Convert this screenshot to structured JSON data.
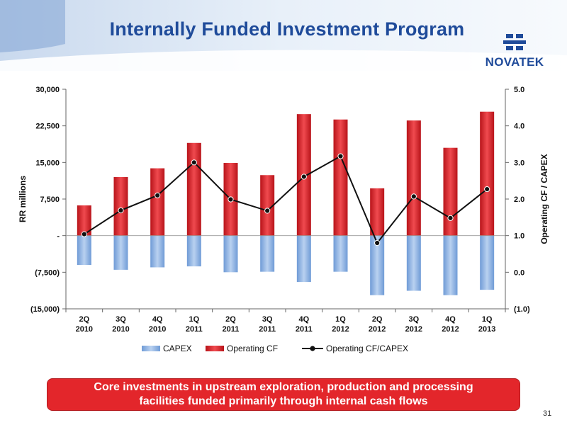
{
  "slide": {
    "title": "Internally Funded Investment Program",
    "logo_text": "NOVATEK",
    "callout": "Core investments in upstream exploration, production and processing\nfacilities funded primarily through internal cash flows",
    "page_number": "31"
  },
  "colors": {
    "title": "#1f4b9a",
    "capex": "#8fb4e3",
    "operating_cf": "#e3262b",
    "ratio_line": "#111111",
    "callout_bg": "#e3262b"
  },
  "chart_data": {
    "type": "bar",
    "categories": [
      [
        "2Q",
        "2010"
      ],
      [
        "3Q",
        "2010"
      ],
      [
        "4Q",
        "2010"
      ],
      [
        "1Q",
        "2011"
      ],
      [
        "2Q",
        "2011"
      ],
      [
        "3Q",
        "2011"
      ],
      [
        "4Q",
        "2011"
      ],
      [
        "1Q",
        "2012"
      ],
      [
        "2Q",
        "2012"
      ],
      [
        "3Q",
        "2012"
      ],
      [
        "4Q",
        "2012"
      ],
      [
        "1Q",
        "2013"
      ]
    ],
    "series": [
      {
        "name": "CAPEX",
        "type": "bar",
        "axis": "left",
        "values": [
          -6000,
          -7000,
          -6500,
          -6300,
          -7500,
          -7400,
          -9500,
          -7400,
          -12200,
          -11300,
          -12200,
          -11100
        ]
      },
      {
        "name": "Operating CF",
        "type": "bar",
        "axis": "left",
        "values": [
          6200,
          12000,
          13800,
          19000,
          14900,
          12400,
          24900,
          23800,
          9700,
          23600,
          18000,
          25400
        ]
      },
      {
        "name": "Operating CF/CAPEX",
        "type": "line",
        "axis": "right",
        "values": [
          1.04,
          1.69,
          2.1,
          3.0,
          1.99,
          1.68,
          2.61,
          3.17,
          0.8,
          2.07,
          1.48,
          2.27
        ]
      }
    ],
    "ylabel": "RR millions",
    "ylabel_right": "Operating CF / CAPEX",
    "ylim": [
      -15000,
      30000
    ],
    "ylim_right": [
      -1.0,
      5.0
    ],
    "yticks": [
      30000,
      22500,
      15000,
      7500,
      0,
      -7500,
      -15000
    ],
    "ytick_labels": [
      "30,000",
      "22,500",
      "15,000",
      "7,500",
      "-",
      "(7,500)",
      "(15,000)"
    ],
    "yticks_right": [
      5.0,
      4.0,
      3.0,
      2.0,
      1.0,
      0.0,
      -1.0
    ],
    "ytick_labels_right": [
      "5.0",
      "4.0",
      "3.0",
      "2.0",
      "1.0",
      "0.0",
      "(1.0)"
    ],
    "legend": [
      "CAPEX",
      "Operating CF",
      "Operating CF/CAPEX"
    ],
    "legend_position": "bottom",
    "grid": false
  }
}
